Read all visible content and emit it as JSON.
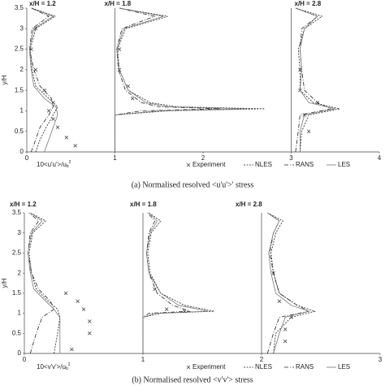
{
  "chart_data": [
    {
      "type": "line",
      "caption": "(a) Normalised resolved <u'u'>' stress",
      "y_label": "y/H",
      "x_label": "10<u'u'>/u",
      "x_label_sub": "b",
      "x_label_sup": "2",
      "stations": [
        {
          "label": "x/H = 1.2",
          "x0": 0
        },
        {
          "label": "x/H = 1.8",
          "x0": 1
        },
        {
          "label": "x/H = 2.8",
          "x0": 3
        }
      ],
      "xlim": [
        0,
        4
      ],
      "xticks": [
        0,
        1,
        2,
        3,
        4
      ],
      "ylim": [
        0,
        3.5
      ],
      "yticks": [
        0,
        0.5,
        1,
        1.5,
        2,
        2.5,
        3,
        3.5
      ],
      "series": [
        {
          "name": "Experiment",
          "style": "markers",
          "color": "#333333",
          "x": [
            0.55,
            0.45,
            0.35,
            0.3,
            0.25,
            0.3,
            0.2,
            0.1,
            0.05,
            0.1,
            null,
            1.2,
            1.15,
            1.05,
            1.05,
            null,
            3.2,
            3.15,
            3.3,
            3.1,
            3.1
          ],
          "values": [
            0.15,
            0.35,
            0.6,
            0.8,
            1.0,
            1.2,
            1.5,
            2.0,
            2.5,
            3.0,
            null,
            1.3,
            1.6,
            2.0,
            2.5,
            null,
            0.5,
            0.9,
            1.2,
            1.5,
            2.0
          ]
        },
        {
          "name": "NLES",
          "style": "dashed",
          "color": "#222222",
          "x": [
            0.1,
            0.15,
            0.22,
            0.3,
            0.35,
            0.25,
            0.1,
            0.06,
            0.04,
            0.1,
            0.32,
            0.06,
            null,
            1.0,
            1.0,
            1.6,
            2.7,
            1.7,
            1.4,
            1.15,
            1.05,
            1.03,
            1.12,
            1.6,
            1.05,
            null,
            3.1,
            3.12,
            3.2,
            3.55,
            3.25,
            3.1,
            3.1,
            3.08,
            3.15,
            3.35,
            3.05
          ],
          "values": [
            0,
            0.3,
            0.6,
            0.9,
            1.1,
            1.3,
            1.6,
            2.0,
            2.5,
            3.0,
            3.3,
            3.5,
            null,
            0,
            0.9,
            1.0,
            1.05,
            1.1,
            1.2,
            1.5,
            2.0,
            2.5,
            3.0,
            3.3,
            3.5,
            null,
            0,
            0.5,
            0.9,
            1.05,
            1.2,
            1.5,
            2.0,
            2.5,
            3.0,
            3.3,
            3.5
          ]
        },
        {
          "name": "RANS",
          "style": "dashdot",
          "color": "#222222",
          "x": [
            0.05,
            0.1,
            0.15,
            0.25,
            0.3,
            0.28,
            0.15,
            0.08,
            0.03,
            0.06,
            0.25,
            0.05,
            null,
            1.0,
            1.0,
            1.3,
            2.2,
            1.5,
            1.3,
            1.12,
            1.04,
            1.02,
            1.08,
            1.45,
            1.05,
            null,
            3.05,
            3.08,
            3.1,
            3.45,
            3.3,
            3.15,
            3.12,
            3.1,
            3.12,
            3.3,
            3.05
          ],
          "values": [
            0,
            0.3,
            0.6,
            0.9,
            1.1,
            1.3,
            1.6,
            2.0,
            2.5,
            3.0,
            3.3,
            3.5,
            null,
            0,
            0.9,
            1.0,
            1.05,
            1.1,
            1.2,
            1.5,
            2.0,
            2.5,
            3.0,
            3.3,
            3.5,
            null,
            0,
            0.5,
            0.9,
            1.05,
            1.2,
            1.5,
            2.0,
            2.5,
            3.0,
            3.3,
            3.5
          ]
        },
        {
          "name": "LES",
          "style": "solid",
          "color": "#777777",
          "x": [
            0.2,
            0.25,
            0.3,
            0.35,
            0.33,
            0.2,
            0.08,
            0.05,
            0.03,
            0.08,
            0.3,
            0.05,
            null,
            1.0,
            1.0,
            1.5,
            2.5,
            1.6,
            1.35,
            1.15,
            1.05,
            1.02,
            1.1,
            1.55,
            1.05,
            null,
            3.1,
            3.1,
            3.15,
            3.5,
            3.2,
            3.1,
            3.12,
            3.1,
            3.15,
            3.3,
            3.05
          ],
          "values": [
            0,
            0.3,
            0.6,
            0.9,
            1.1,
            1.3,
            1.6,
            2.0,
            2.5,
            3.0,
            3.3,
            3.5,
            null,
            0,
            0.9,
            1.0,
            1.05,
            1.1,
            1.2,
            1.5,
            2.0,
            2.5,
            3.0,
            3.3,
            3.5,
            null,
            0,
            0.5,
            0.9,
            1.05,
            1.2,
            1.5,
            2.0,
            2.5,
            3.0,
            3.3,
            3.5
          ]
        }
      ]
    },
    {
      "type": "line",
      "caption": "(b) Normalised resolved <v'v'> stress",
      "y_label": "y/H",
      "x_label": "10<v'v'>/u",
      "x_label_sub": "b",
      "x_label_sup": "2",
      "stations": [
        {
          "label": "x/H = 1.2",
          "x0": 0
        },
        {
          "label": "x/H = 1.8",
          "x0": 1
        },
        {
          "label": "x/H = 2.8",
          "x0": 2
        }
      ],
      "xlim": [
        0,
        3
      ],
      "xticks": [
        0,
        1,
        2,
        3
      ],
      "ylim": [
        0,
        3.5
      ],
      "yticks": [
        0,
        0.5,
        1,
        1.5,
        2,
        2.5,
        3,
        3.5
      ],
      "series": [
        {
          "name": "Experiment",
          "style": "markers",
          "color": "#333333",
          "x": [
            0.4,
            0.55,
            0.55,
            0.5,
            0.45,
            0.35,
            null,
            1.2,
            1.35,
            1.1,
            null,
            2.2,
            2.2,
            2.25,
            2.15,
            2.1
          ],
          "values": [
            0.1,
            0.5,
            0.8,
            1.1,
            1.3,
            1.5,
            null,
            1.1,
            1.05,
            1.6,
            null,
            0.3,
            0.6,
            0.9,
            1.3,
            2.0
          ]
        },
        {
          "name": "NLES",
          "style": "dashed",
          "color": "#222222",
          "x": [
            0.25,
            0.28,
            0.3,
            0.28,
            0.2,
            0.1,
            0.06,
            0.04,
            0.07,
            0.18,
            0.05,
            null,
            1.0,
            1.0,
            1.15,
            1.6,
            1.35,
            1.15,
            1.06,
            1.04,
            1.07,
            1.15,
            1.05,
            null,
            2.1,
            2.12,
            2.25,
            2.45,
            2.3,
            2.15,
            2.1,
            2.08,
            2.12,
            2.18,
            2.05
          ],
          "values": [
            0,
            0.5,
            0.9,
            1.1,
            1.3,
            1.6,
            2.0,
            2.5,
            3.0,
            3.3,
            3.5,
            null,
            0,
            0.9,
            1.0,
            1.05,
            1.2,
            1.5,
            2.0,
            2.5,
            3.0,
            3.3,
            3.5,
            null,
            0,
            0.5,
            0.9,
            1.05,
            1.2,
            1.5,
            2.0,
            2.5,
            3.0,
            3.3,
            3.5
          ]
        },
        {
          "name": "RANS",
          "style": "dashdot",
          "color": "#222222",
          "x": [
            0.05,
            0.1,
            0.15,
            0.25,
            0.22,
            0.12,
            0.06,
            0.03,
            0.05,
            0.12,
            0.04,
            null,
            1.0,
            1.0,
            1.05,
            1.4,
            1.25,
            1.12,
            1.05,
            1.03,
            1.05,
            1.1,
            1.04,
            null,
            2.05,
            2.1,
            2.15,
            2.4,
            2.3,
            2.15,
            2.1,
            2.07,
            2.1,
            2.15,
            2.05
          ],
          "values": [
            0,
            0.5,
            0.9,
            1.1,
            1.3,
            1.6,
            2.0,
            2.5,
            3.0,
            3.3,
            3.5,
            null,
            0,
            0.9,
            1.0,
            1.05,
            1.2,
            1.5,
            2.0,
            2.5,
            3.0,
            3.3,
            3.5,
            null,
            0,
            0.5,
            0.9,
            1.05,
            1.2,
            1.5,
            2.0,
            2.5,
            3.0,
            3.3,
            3.5
          ]
        },
        {
          "name": "LES",
          "style": "solid",
          "color": "#777777",
          "x": [
            0.3,
            0.3,
            0.3,
            0.25,
            0.18,
            0.08,
            0.05,
            0.03,
            0.06,
            0.15,
            0.05,
            null,
            1.0,
            1.0,
            1.1,
            1.55,
            1.3,
            1.15,
            1.05,
            1.03,
            1.06,
            1.12,
            1.05,
            null,
            2.1,
            2.15,
            2.2,
            2.4,
            2.25,
            2.12,
            2.08,
            2.06,
            2.1,
            2.15,
            2.05
          ],
          "values": [
            0,
            0.5,
            0.9,
            1.1,
            1.3,
            1.6,
            2.0,
            2.5,
            3.0,
            3.3,
            3.5,
            null,
            0,
            0.9,
            1.0,
            1.05,
            1.2,
            1.5,
            2.0,
            2.5,
            3.0,
            3.3,
            3.5,
            null,
            0,
            0.5,
            0.9,
            1.05,
            1.2,
            1.5,
            2.0,
            2.5,
            3.0,
            3.3,
            3.5
          ]
        }
      ]
    }
  ]
}
